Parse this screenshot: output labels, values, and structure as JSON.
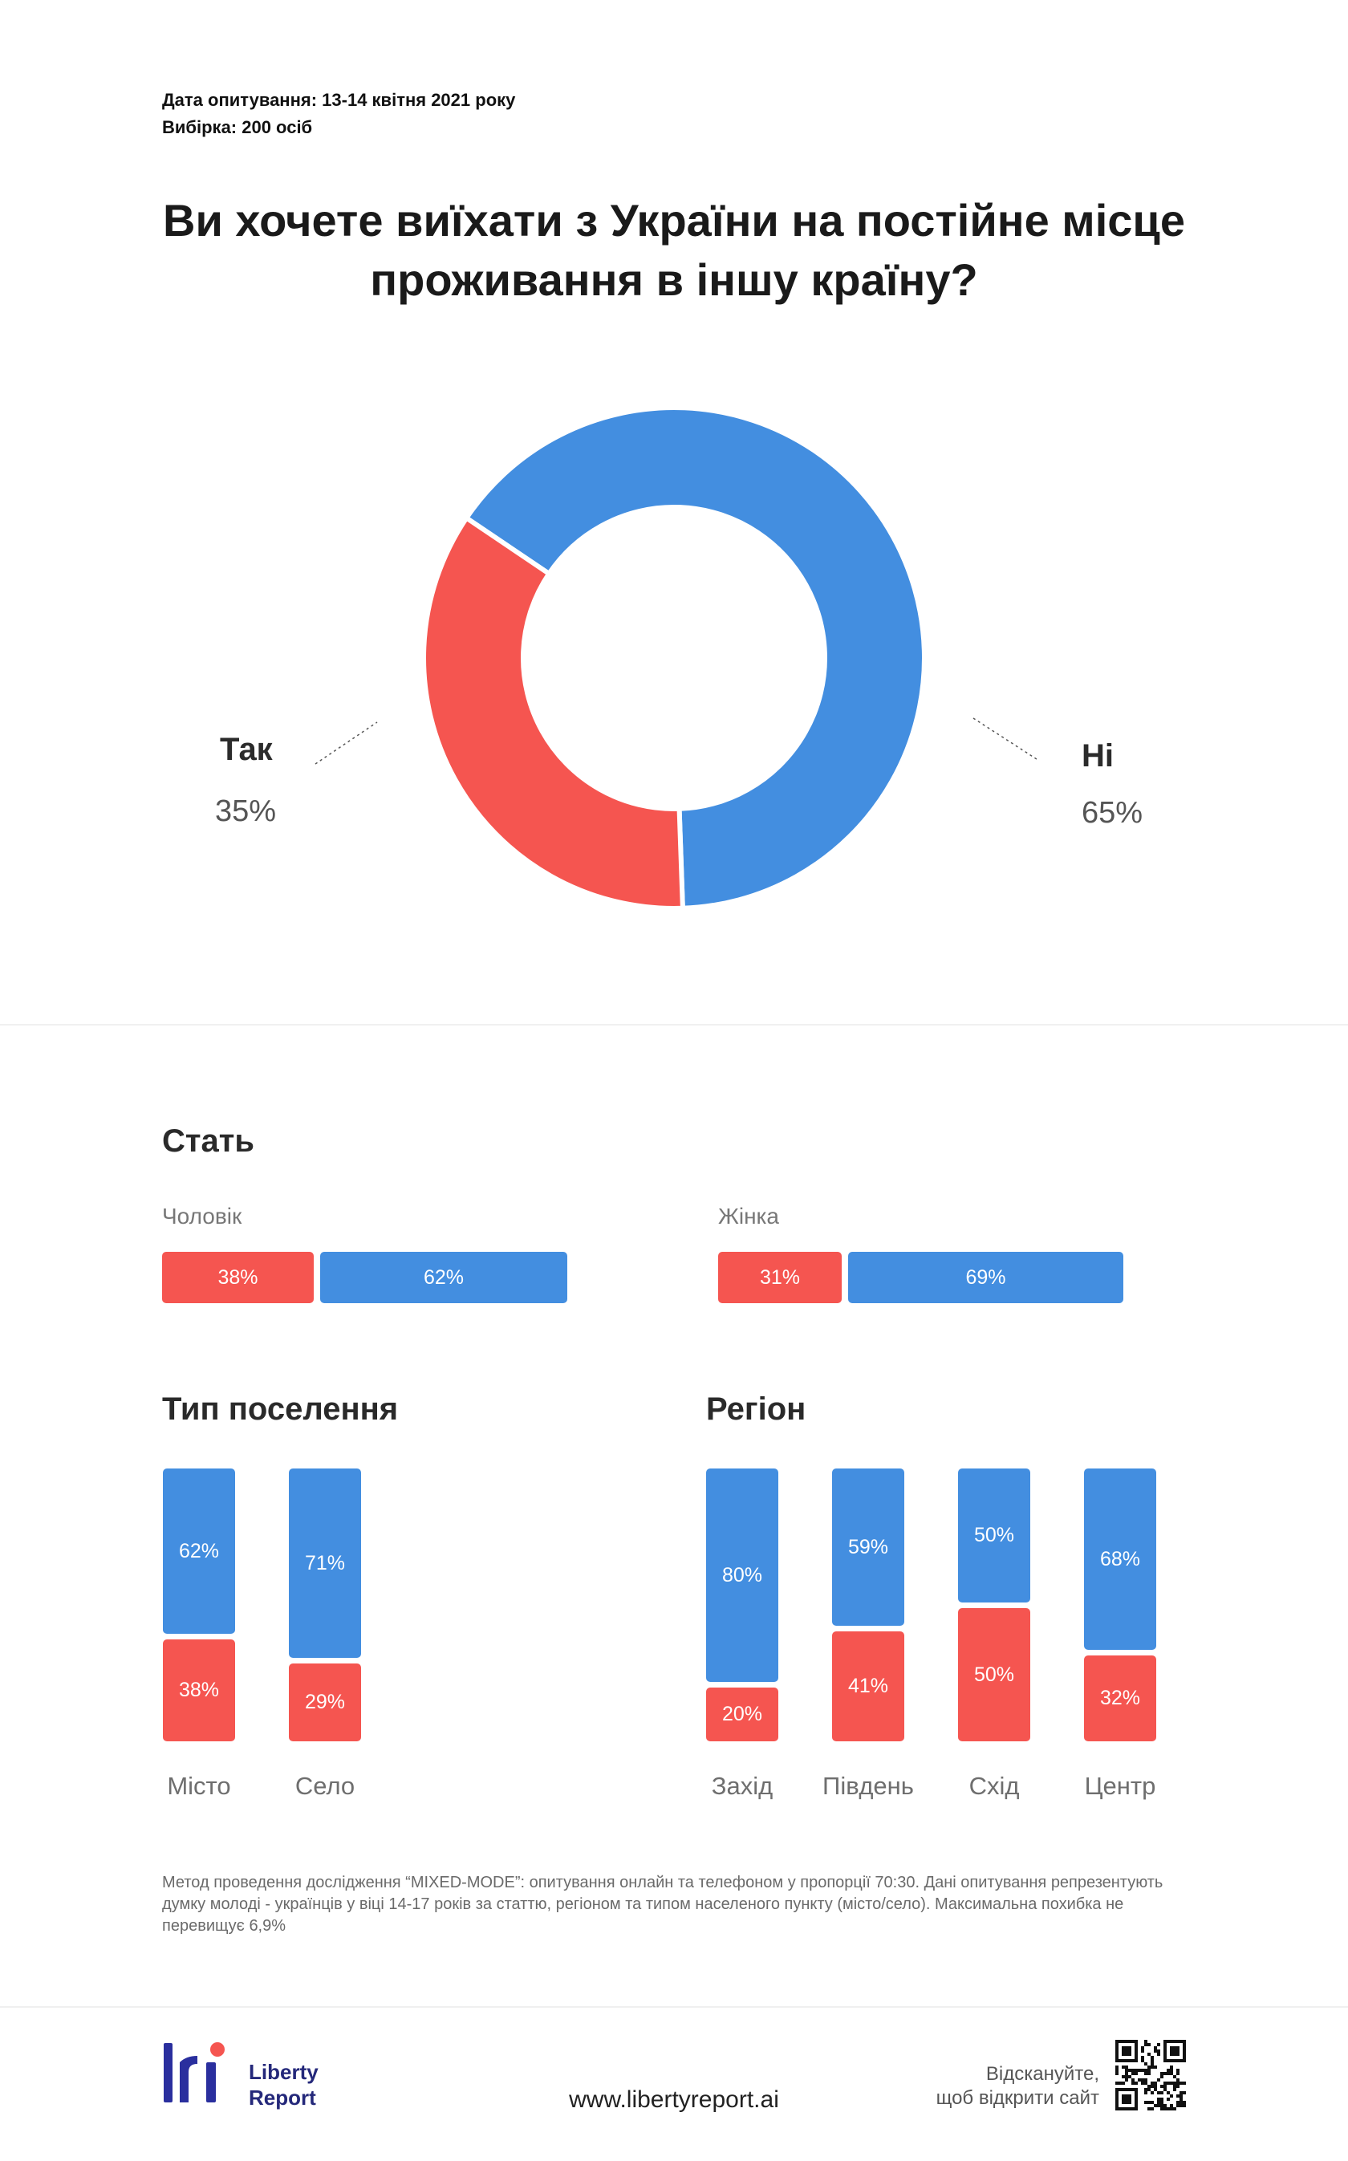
{
  "meta": {
    "date_line": "Дата опитування: 13-14 квітня 2021 року",
    "sample_line": "Вибірка: 200 осіб"
  },
  "chart_data": [
    {
      "type": "pie",
      "title": "Ви хочете виїхати з України на постійне місце проживання в іншу країну?",
      "categories": [
        "Так",
        "Ні"
      ],
      "values": [
        35,
        65
      ],
      "value_labels": [
        "35%",
        "65%"
      ],
      "colors": [
        "#f55550",
        "#438ee0"
      ],
      "donut": true
    },
    {
      "type": "bar",
      "orientation": "horizontal",
      "stacked": true,
      "title": "Стать",
      "categories": [
        "Чоловік",
        "Жінка"
      ],
      "series": [
        {
          "values": [
            38,
            31
          ],
          "labels": [
            "38%",
            "31%"
          ],
          "color": "#f55550"
        },
        {
          "values": [
            62,
            69
          ],
          "labels": [
            "62%",
            "69%"
          ],
          "color": "#438ee0"
        }
      ]
    },
    {
      "type": "bar",
      "orientation": "vertical",
      "stacked": true,
      "title": "Тип поселення",
      "categories": [
        "Місто",
        "Село"
      ],
      "series": [
        {
          "values": [
            38,
            29
          ],
          "labels": [
            "38%",
            "29%"
          ],
          "color": "#f55550"
        },
        {
          "values": [
            62,
            71
          ],
          "labels": [
            "62%",
            "71%"
          ],
          "color": "#438ee0"
        }
      ]
    },
    {
      "type": "bar",
      "orientation": "vertical",
      "stacked": true,
      "title": "Регіон",
      "categories": [
        "Захід",
        "Південь",
        "Схід",
        "Центр"
      ],
      "series": [
        {
          "values": [
            20,
            41,
            50,
            32
          ],
          "labels": [
            "20%",
            "41%",
            "50%",
            "32%"
          ],
          "color": "#f55550"
        },
        {
          "values": [
            80,
            59,
            50,
            68
          ],
          "labels": [
            "80%",
            "59%",
            "50%",
            "68%"
          ],
          "color": "#438ee0"
        }
      ]
    }
  ],
  "footnote": "Метод проведення дослідження “MIXED-MODE”: опитування онлайн та телефоном у пропорції 70:30. Дані опитування репрезентують думку молоді - українців у віці 14-17 років за статтю, регіоном та типом населеного пункту (місто/село). Максимальна похибка не перевищує 6,9%",
  "footer": {
    "logo_line1": "Liberty",
    "logo_line2": "Report",
    "website": "www.libertyreport.ai",
    "scan_line1": "Відскануйте,",
    "scan_line2": "щоб відкрити сайт",
    "logo_color": "#2a2f9e",
    "logo_accent": "#f55550"
  }
}
